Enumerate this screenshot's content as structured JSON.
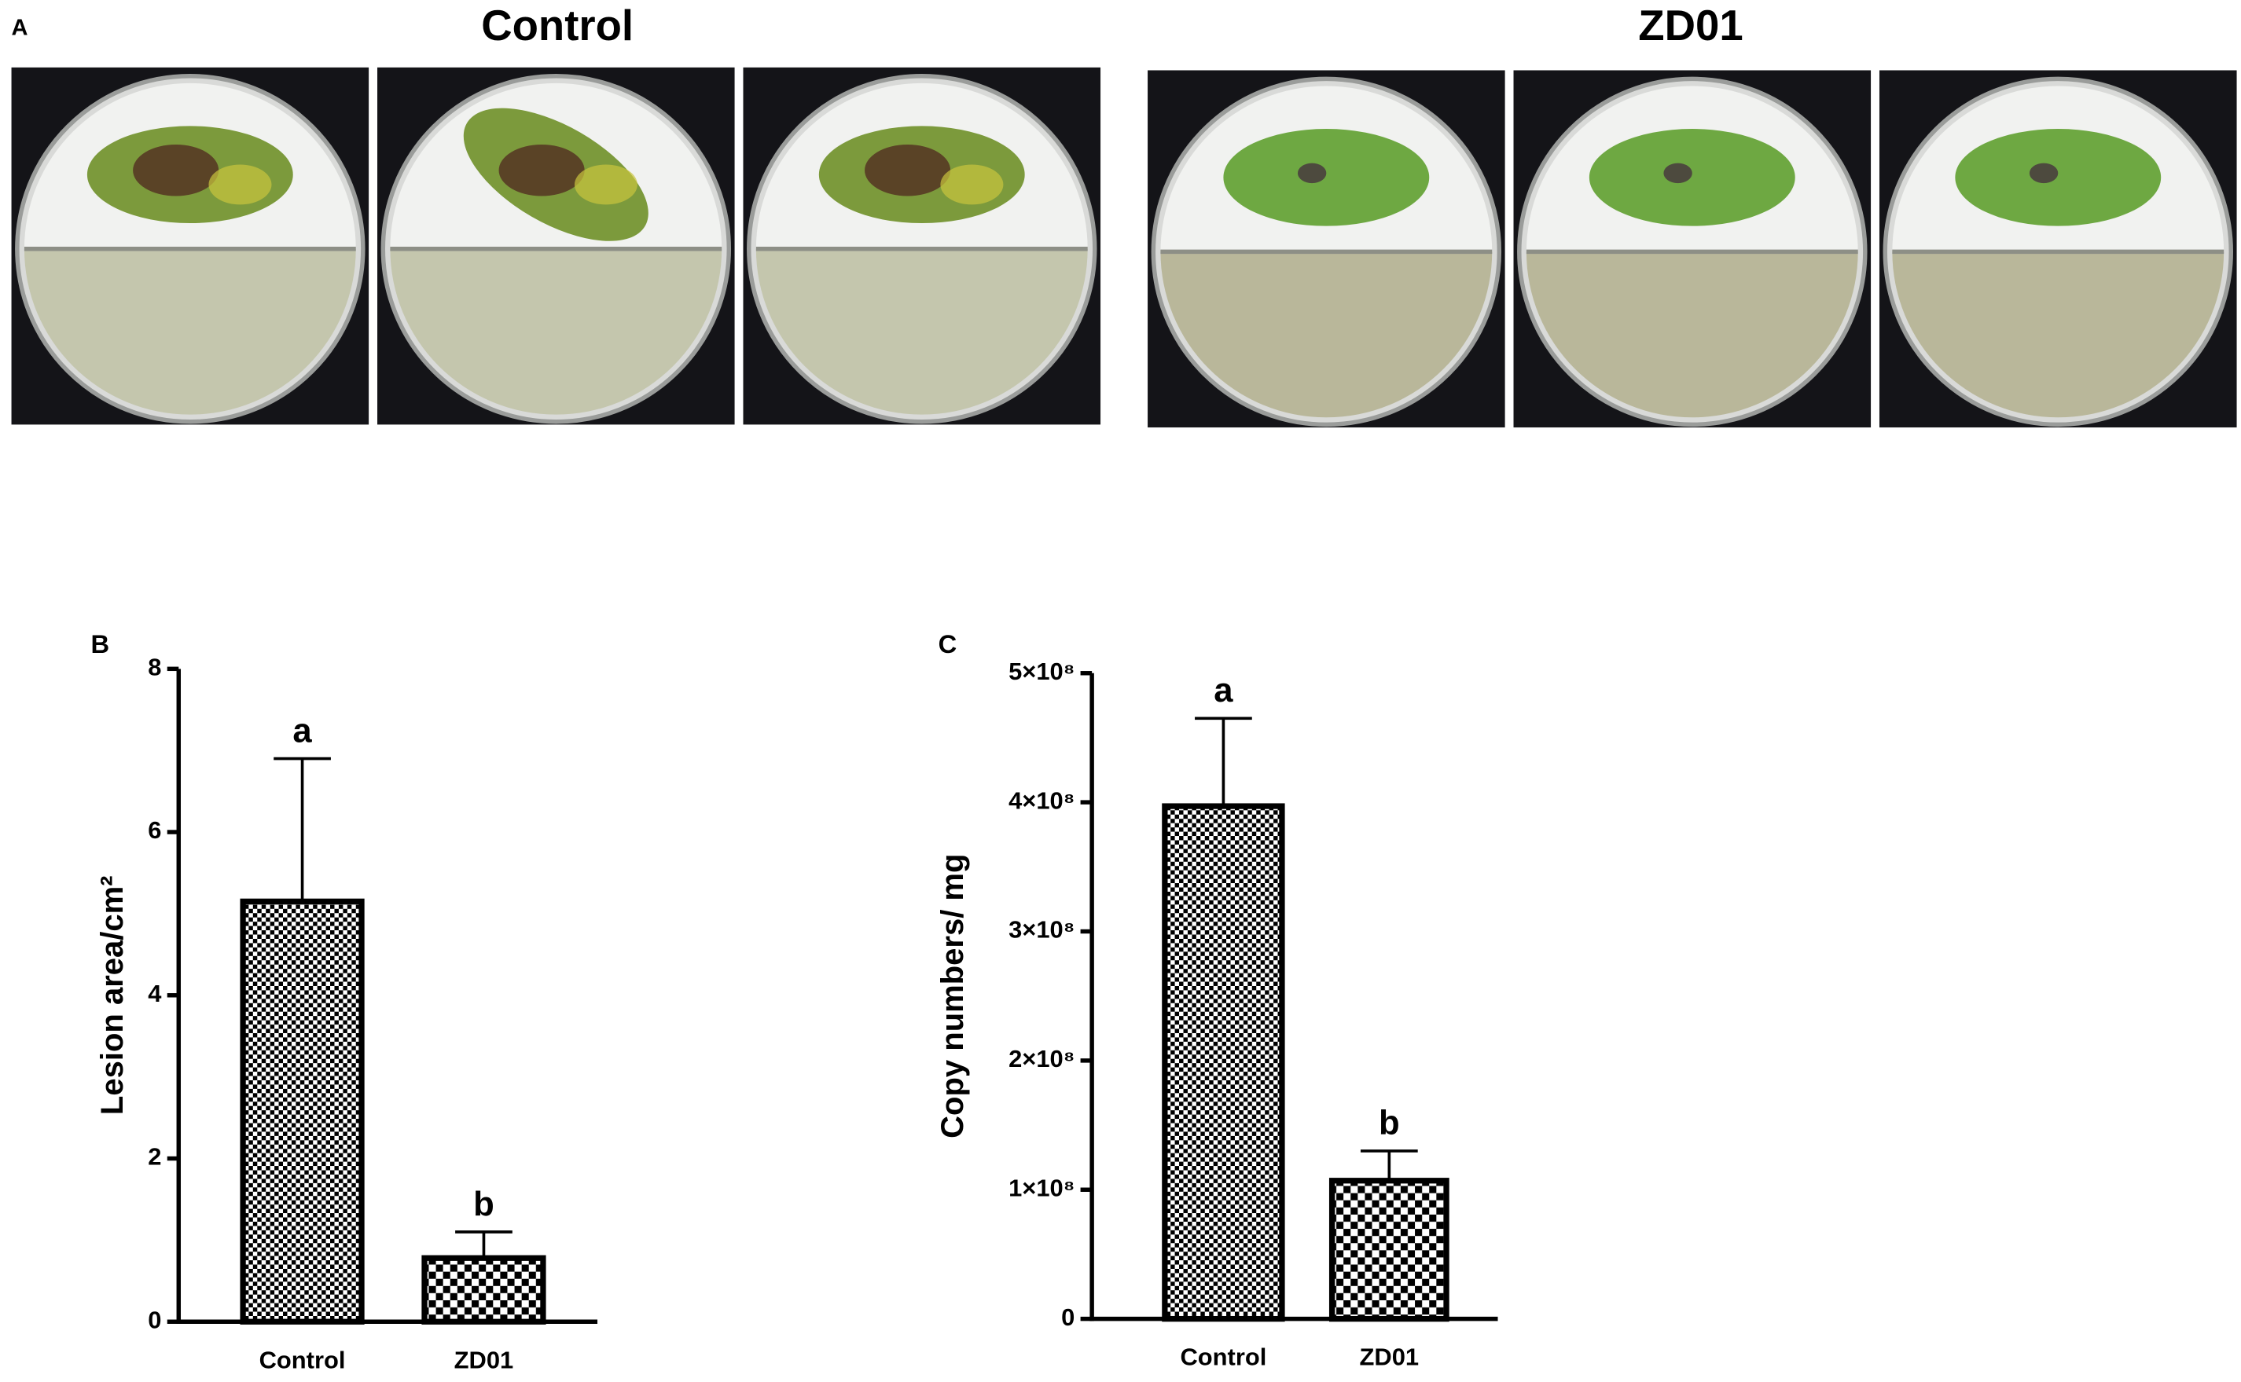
{
  "panel_a": {
    "label": "A",
    "groups": [
      "Control",
      "ZD01"
    ]
  },
  "chart_data": [
    {
      "type": "bar",
      "panel_label": "B",
      "y_label": "Lesion area/cm²",
      "categories": [
        "Control",
        "ZD01"
      ],
      "values": [
        5.15,
        0.78
      ],
      "errors": [
        1.75,
        0.32
      ],
      "annotations": [
        "a",
        "b"
      ],
      "color": "#000000",
      "ylim": [
        0,
        8
      ],
      "yticks": [
        0,
        2,
        4,
        6,
        8
      ]
    },
    {
      "type": "bar",
      "panel_label": "C",
      "y_label": "Copy numbers/ mg",
      "categories": [
        "Control",
        "ZD01"
      ],
      "values": [
        397000000,
        107000000
      ],
      "errors": [
        68000000,
        23000000
      ],
      "annotations": [
        "a",
        "b"
      ],
      "color": "#000000",
      "ylim": [
        0,
        500000000
      ],
      "yticks": [
        0,
        {
          "value": 100000000,
          "label": "1×10⁸"
        },
        {
          "value": 200000000,
          "label": "2×10⁸"
        },
        {
          "value": 300000000,
          "label": "3×10⁸"
        },
        {
          "value": 400000000,
          "label": "4×10⁸"
        },
        {
          "value": 500000000,
          "label": "5×10⁸"
        }
      ]
    }
  ]
}
